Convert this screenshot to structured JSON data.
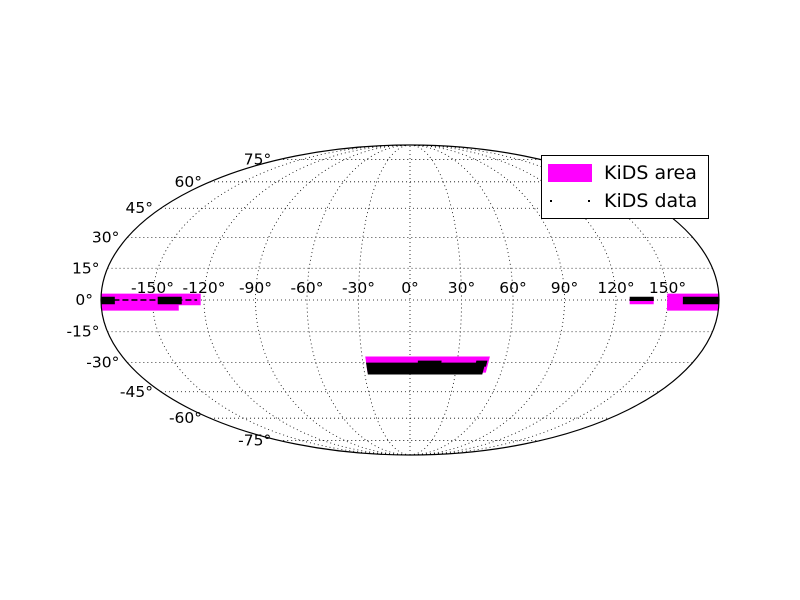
{
  "chart_data": {
    "type": "map",
    "projection": "mollweide",
    "grid": true,
    "legend_position": "top-right",
    "parallels": [
      {
        "value": 75,
        "label": "75°"
      },
      {
        "value": 60,
        "label": "60°"
      },
      {
        "value": 45,
        "label": "45°"
      },
      {
        "value": 30,
        "label": "30°"
      },
      {
        "value": 15,
        "label": "15°"
      },
      {
        "value": 0,
        "label": "0°"
      },
      {
        "value": -15,
        "label": "-15°"
      },
      {
        "value": -30,
        "label": "-30°"
      },
      {
        "value": -45,
        "label": "-45°"
      },
      {
        "value": -60,
        "label": "-60°"
      },
      {
        "value": -75,
        "label": "-75°"
      }
    ],
    "meridians": [
      {
        "value": -150,
        "label": "-150°"
      },
      {
        "value": -120,
        "label": "-120°"
      },
      {
        "value": -90,
        "label": "-90°"
      },
      {
        "value": -60,
        "label": "-60°"
      },
      {
        "value": -30,
        "label": "-30°"
      },
      {
        "value": 0,
        "label": "0°"
      },
      {
        "value": 30,
        "label": "30°"
      },
      {
        "value": 60,
        "label": "60°"
      },
      {
        "value": 90,
        "label": "90°"
      },
      {
        "value": 120,
        "label": "120°"
      },
      {
        "value": 150,
        "label": "150°"
      }
    ],
    "series": [
      {
        "name": "KiDS area",
        "color": "#ff00ff",
        "regions": [
          {
            "lon": [
              -180,
              -135
            ],
            "lat": [
              -5,
              3
            ]
          },
          {
            "lon": [
              -135,
              -122
            ],
            "lat": [
              -2.5,
              3
            ]
          },
          {
            "lon": [
              128,
              142
            ],
            "lat": [
              -2,
              1
            ]
          },
          {
            "lon": [
              150,
              180
            ],
            "lat": [
              -5,
              3
            ]
          },
          {
            "lon": [
              -28,
              50
            ],
            "lat": [
              -35,
              -27
            ]
          },
          {
            "lon": [
              20,
              25
            ],
            "lat": [
              -36,
              -32
            ]
          }
        ]
      },
      {
        "name": "KiDS data",
        "color": "#000000",
        "regions": [
          {
            "lon": [
              -180,
              -172
            ],
            "lat": [
              -2,
              1.5
            ]
          },
          {
            "lon": [
              -147,
              -133
            ],
            "lat": [
              -2,
              1.5
            ]
          },
          {
            "lon": [
              128,
              142
            ],
            "lat": [
              -0.5,
              1.5
            ]
          },
          {
            "lon": [
              159,
              180
            ],
            "lat": [
              -2,
              1.5
            ]
          },
          {
            "lon": [
              -28,
              48
            ],
            "lat": [
              -36,
              -30
            ]
          },
          {
            "lon": [
              5,
              20
            ],
            "lat": [
              -33,
              -29
            ]
          },
          {
            "lon": [
              42,
              49
            ],
            "lat": [
              -32,
              -29
            ]
          }
        ],
        "strips": [
          {
            "lon": [
              -178,
              -124
            ],
            "lat": 0
          }
        ]
      }
    ]
  },
  "legend": {
    "area_label": "KiDS area",
    "data_label": "KiDS data"
  }
}
